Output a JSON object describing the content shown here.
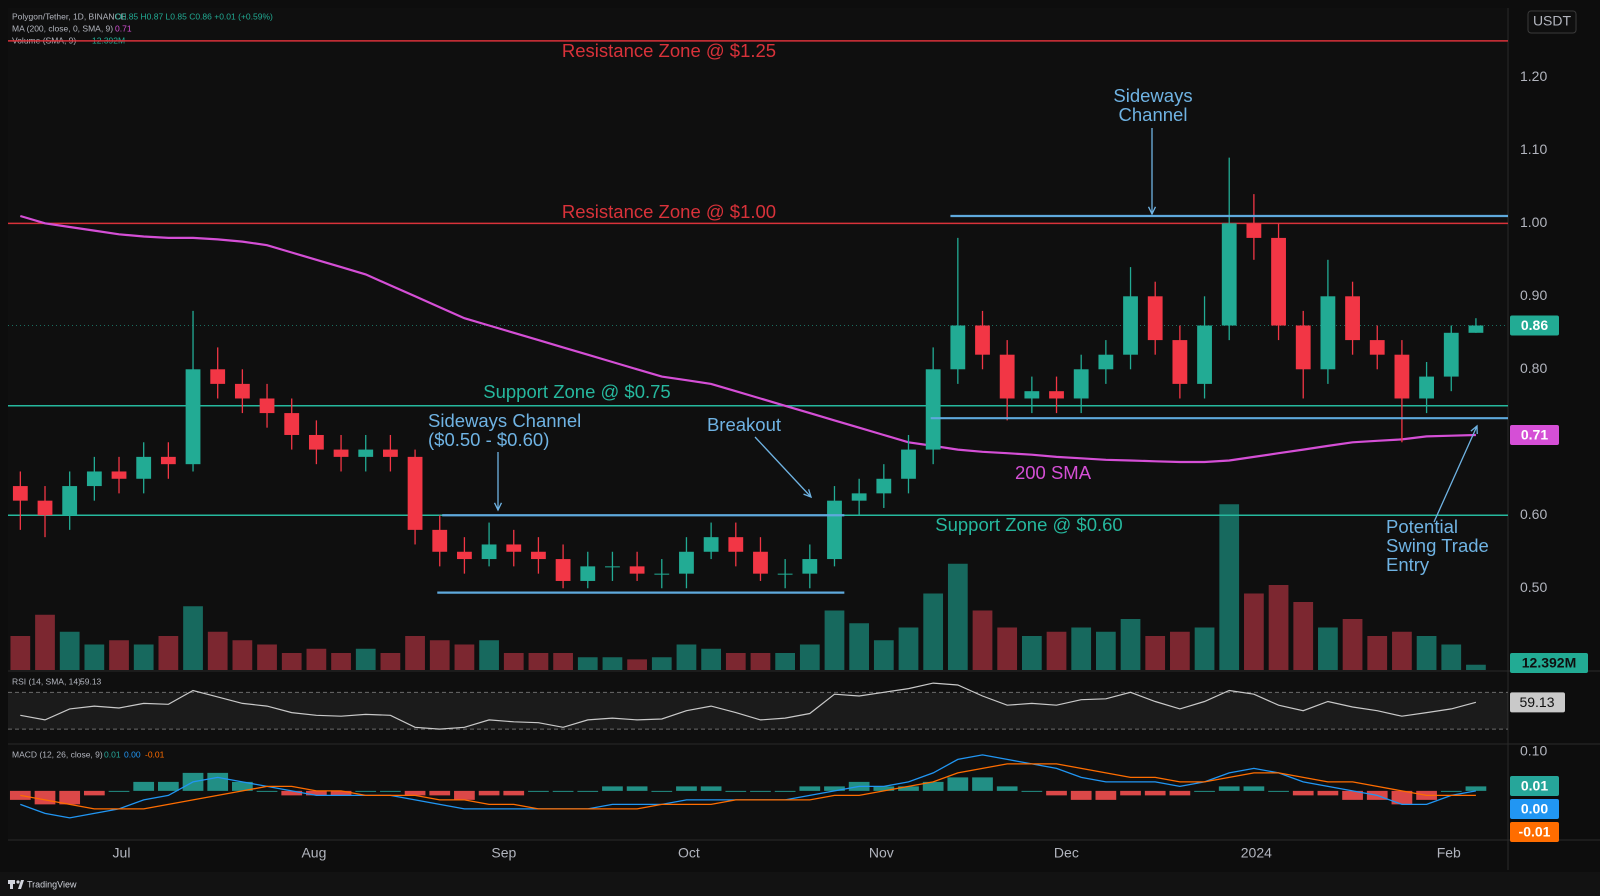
{
  "chart_data": [
    {
      "type": "candlestick",
      "symbol": "Polygon/Tether, 1D, BINANCE",
      "ohlc_text": "O0.85 H0.87 L0.85 C0.86 +0.01 (+0.59%)",
      "currency": "USDT",
      "watermark": "TradingView",
      "grid": false,
      "xlim": [
        -0.5,
        60.3
      ],
      "xticks": [
        {
          "value": 4.1,
          "label": "Jul"
        },
        {
          "value": 11.9,
          "label": "Aug"
        },
        {
          "value": 19.6,
          "label": "Sep"
        },
        {
          "value": 27.1,
          "label": "Oct"
        },
        {
          "value": 34.9,
          "label": "Nov"
        },
        {
          "value": 42.4,
          "label": "Dec"
        },
        {
          "value": 50.1,
          "label": "2024"
        },
        {
          "value": 57.9,
          "label": "Feb"
        }
      ],
      "ylim": [
        0.388,
        1.295
      ],
      "yticks": [
        {
          "value": 0.5,
          "label": "0.50"
        },
        {
          "value": 0.6,
          "label": "0.60"
        },
        {
          "value": 0.8,
          "label": "0.80"
        },
        {
          "value": 0.9,
          "label": "0.90"
        },
        {
          "value": 1.0,
          "label": "1.00"
        },
        {
          "value": 1.1,
          "label": "1.10"
        },
        {
          "value": 1.2,
          "label": "1.20"
        }
      ],
      "up_color": "#22ab94",
      "down_color": "#f23645",
      "open": [
        0.64,
        0.62,
        0.6,
        0.64,
        0.66,
        0.65,
        0.68,
        0.67,
        0.8,
        0.78,
        0.76,
        0.74,
        0.71,
        0.69,
        0.68,
        0.69,
        0.68,
        0.58,
        0.55,
        0.54,
        0.56,
        0.55,
        0.54,
        0.51,
        0.53,
        0.53,
        0.52,
        0.52,
        0.55,
        0.57,
        0.55,
        0.52,
        0.52,
        0.54,
        0.62,
        0.63,
        0.65,
        0.69,
        0.8,
        0.86,
        0.82,
        0.76,
        0.77,
        0.76,
        0.8,
        0.82,
        0.9,
        0.84,
        0.78,
        0.86,
        1.0,
        0.98,
        0.86,
        0.8,
        0.9,
        0.84,
        0.82,
        0.76,
        0.79,
        0.85
      ],
      "high": [
        0.66,
        0.64,
        0.66,
        0.68,
        0.68,
        0.7,
        0.7,
        0.88,
        0.83,
        0.8,
        0.78,
        0.76,
        0.73,
        0.71,
        0.71,
        0.71,
        0.69,
        0.6,
        0.57,
        0.59,
        0.58,
        0.57,
        0.56,
        0.55,
        0.55,
        0.55,
        0.54,
        0.57,
        0.59,
        0.59,
        0.57,
        0.54,
        0.56,
        0.64,
        0.65,
        0.67,
        0.71,
        0.83,
        0.98,
        0.88,
        0.84,
        0.79,
        0.79,
        0.82,
        0.84,
        0.94,
        0.92,
        0.86,
        0.9,
        1.09,
        1.04,
        1.0,
        0.88,
        0.95,
        0.92,
        0.86,
        0.84,
        0.81,
        0.86,
        0.87
      ],
      "low": [
        0.58,
        0.57,
        0.58,
        0.62,
        0.63,
        0.63,
        0.65,
        0.66,
        0.76,
        0.74,
        0.72,
        0.69,
        0.67,
        0.66,
        0.66,
        0.66,
        0.56,
        0.53,
        0.52,
        0.53,
        0.53,
        0.52,
        0.5,
        0.5,
        0.51,
        0.51,
        0.5,
        0.5,
        0.54,
        0.53,
        0.51,
        0.5,
        0.5,
        0.53,
        0.6,
        0.61,
        0.63,
        0.67,
        0.78,
        0.8,
        0.73,
        0.74,
        0.74,
        0.74,
        0.78,
        0.8,
        0.82,
        0.76,
        0.76,
        0.84,
        0.95,
        0.84,
        0.76,
        0.78,
        0.82,
        0.8,
        0.7,
        0.74,
        0.77,
        0.85
      ],
      "close": [
        0.62,
        0.6,
        0.64,
        0.66,
        0.65,
        0.68,
        0.67,
        0.8,
        0.78,
        0.76,
        0.74,
        0.71,
        0.69,
        0.68,
        0.69,
        0.68,
        0.58,
        0.55,
        0.54,
        0.56,
        0.55,
        0.54,
        0.51,
        0.53,
        0.53,
        0.52,
        0.52,
        0.55,
        0.57,
        0.55,
        0.52,
        0.52,
        0.54,
        0.62,
        0.63,
        0.65,
        0.69,
        0.8,
        0.86,
        0.82,
        0.76,
        0.77,
        0.76,
        0.8,
        0.82,
        0.9,
        0.84,
        0.78,
        0.86,
        1.0,
        0.98,
        0.86,
        0.8,
        0.9,
        0.84,
        0.82,
        0.76,
        0.79,
        0.85,
        0.86
      ],
      "sma": {
        "name": "MA (200, close, 0, SMA, 9)",
        "color": "#d54fd6",
        "values": [
          1.01,
          1.0,
          0.995,
          0.99,
          0.985,
          0.982,
          0.98,
          0.98,
          0.978,
          0.975,
          0.97,
          0.96,
          0.95,
          0.94,
          0.93,
          0.915,
          0.9,
          0.885,
          0.87,
          0.86,
          0.85,
          0.84,
          0.83,
          0.82,
          0.81,
          0.8,
          0.79,
          0.785,
          0.78,
          0.77,
          0.76,
          0.75,
          0.74,
          0.73,
          0.72,
          0.71,
          0.7,
          0.695,
          0.69,
          0.687,
          0.685,
          0.683,
          0.68,
          0.678,
          0.676,
          0.675,
          0.674,
          0.673,
          0.673,
          0.675,
          0.68,
          0.685,
          0.69,
          0.695,
          0.7,
          0.702,
          0.704,
          0.708,
          0.709,
          0.71
        ]
      },
      "volume": {
        "name": "Volume (SMA, 9)",
        "value_label": "12.392M",
        "ylim": [
          0,
          400
        ],
        "up_color": "#17695e",
        "down_color": "#7c2730",
        "values": [
          80,
          130,
          90,
          60,
          70,
          60,
          80,
          150,
          90,
          70,
          60,
          40,
          50,
          40,
          50,
          40,
          80,
          70,
          60,
          70,
          40,
          40,
          40,
          30,
          30,
          25,
          30,
          60,
          50,
          40,
          40,
          40,
          60,
          140,
          110,
          70,
          100,
          180,
          250,
          140,
          100,
          80,
          90,
          100,
          90,
          120,
          80,
          90,
          100,
          390,
          180,
          200,
          160,
          100,
          120,
          80,
          90,
          80,
          60,
          12.392
        ]
      },
      "levels": [
        {
          "text": "Resistance Zone @ $1.25",
          "value": 1.25,
          "color": "#d9323a"
        },
        {
          "text": "Resistance Zone @ $1.00",
          "value": 1.0,
          "color": "#d9323a"
        },
        {
          "text": "Support Zone @ $0.75",
          "value": 0.75,
          "color": "#26b89e"
        },
        {
          "text": "Support Zone @ $0.60",
          "value": 0.6,
          "color": "#26b89e"
        }
      ],
      "channels": [
        {
          "value": 1.01,
          "x": [
            37.7,
            60.3
          ],
          "color": "#5fa9dc"
        },
        {
          "value": 0.733,
          "x": [
            36.9,
            60.3
          ],
          "color": "#5fa9dc"
        },
        {
          "value": 0.6,
          "x": [
            17.1,
            33.4
          ],
          "color": "#5fa9dc"
        },
        {
          "value": 0.494,
          "x": [
            16.9,
            33.4
          ],
          "color": "#5fa9dc"
        }
      ],
      "annotations": [
        {
          "lines": [
            "Sideways",
            "Channel"
          ],
          "color": "#6fb3e3"
        },
        {
          "lines": [
            "Sideways Channel",
            "($0.50 - $0.60)"
          ],
          "color": "#6fb3e3"
        },
        {
          "lines": [
            "Breakout"
          ],
          "color": "#6fb3e3"
        },
        {
          "lines": [
            "200 SMA"
          ],
          "color": "#d54fd6"
        },
        {
          "lines": [
            "Potential",
            "Swing Trade",
            "Entry"
          ],
          "color": "#6fb3e3"
        }
      ]
    },
    {
      "type": "line",
      "name": "RSI (14, SMA, 14)",
      "color": "#c9c9c9",
      "ylim": [
        16,
        91
      ],
      "bands": [
        70,
        30
      ],
      "values": [
        45,
        40,
        52,
        55,
        53,
        58,
        57,
        72,
        65,
        58,
        55,
        48,
        45,
        44,
        46,
        45,
        32,
        30,
        32,
        40,
        38,
        37,
        32,
        40,
        42,
        40,
        41,
        50,
        55,
        48,
        40,
        42,
        47,
        68,
        66,
        70,
        74,
        80,
        78,
        66,
        56,
        58,
        56,
        62,
        63,
        70,
        60,
        52,
        60,
        72,
        68,
        56,
        50,
        60,
        54,
        50,
        44,
        48,
        52,
        59.13
      ]
    },
    {
      "type": "macd",
      "name": "MACD (12, 26, close, 9)",
      "ylim": [
        -0.107,
        0.102
      ],
      "yticks": [
        {
          "value": 0.1,
          "label": "0.10"
        }
      ],
      "histogram": {
        "up_color": "#26a69a",
        "down_color": "#ff5252",
        "values": [
          -0.02,
          -0.03,
          -0.03,
          -0.01,
          0,
          0.02,
          0.02,
          0.04,
          0.04,
          0.02,
          0,
          -0.01,
          -0.01,
          -0.01,
          0,
          0,
          -0.01,
          -0.01,
          -0.02,
          -0.01,
          -0.01,
          0,
          0,
          0,
          0.01,
          0.01,
          0,
          0.01,
          0.01,
          0,
          0,
          0,
          0.01,
          0.01,
          0.02,
          0.01,
          0.01,
          0.02,
          0.03,
          0.03,
          0.01,
          0,
          -0.01,
          -0.02,
          -0.02,
          -0.01,
          -0.01,
          -0.01,
          0,
          0.01,
          0.01,
          0,
          -0.01,
          -0.01,
          -0.02,
          -0.02,
          -0.03,
          -0.02,
          0,
          0.01
        ]
      },
      "macd": {
        "color": "#2196f3",
        "value_label": "0.00",
        "values": [
          -0.03,
          -0.05,
          -0.06,
          -0.05,
          -0.04,
          -0.02,
          -0.01,
          0.02,
          0.03,
          0.02,
          0.01,
          0,
          -0.01,
          -0.01,
          -0.01,
          -0.01,
          -0.02,
          -0.03,
          -0.04,
          -0.04,
          -0.04,
          -0.04,
          -0.04,
          -0.04,
          -0.03,
          -0.03,
          -0.03,
          -0.02,
          -0.02,
          -0.02,
          -0.02,
          -0.02,
          -0.01,
          0,
          0.01,
          0.01,
          0.02,
          0.04,
          0.07,
          0.08,
          0.07,
          0.06,
          0.05,
          0.03,
          0.02,
          0.02,
          0.02,
          0.01,
          0.02,
          0.04,
          0.05,
          0.04,
          0.02,
          0.01,
          0,
          -0.01,
          -0.03,
          -0.03,
          -0.01,
          0
        ]
      },
      "signal": {
        "color": "#ff6d00",
        "values": [
          -0.01,
          -0.02,
          -0.03,
          -0.04,
          -0.04,
          -0.04,
          -0.03,
          -0.02,
          -0.01,
          0,
          0.01,
          0.01,
          0,
          0,
          -0.01,
          -0.01,
          -0.01,
          -0.02,
          -0.02,
          -0.03,
          -0.03,
          -0.04,
          -0.04,
          -0.04,
          -0.04,
          -0.04,
          -0.03,
          -0.03,
          -0.03,
          -0.02,
          -0.02,
          -0.02,
          -0.02,
          -0.01,
          -0.01,
          0,
          0.01,
          0.02,
          0.04,
          0.05,
          0.06,
          0.06,
          0.06,
          0.05,
          0.04,
          0.03,
          0.03,
          0.02,
          0.02,
          0.03,
          0.04,
          0.04,
          0.03,
          0.02,
          0.02,
          0.01,
          0,
          -0.01,
          -0.01,
          -0.01
        ]
      }
    }
  ]
}
